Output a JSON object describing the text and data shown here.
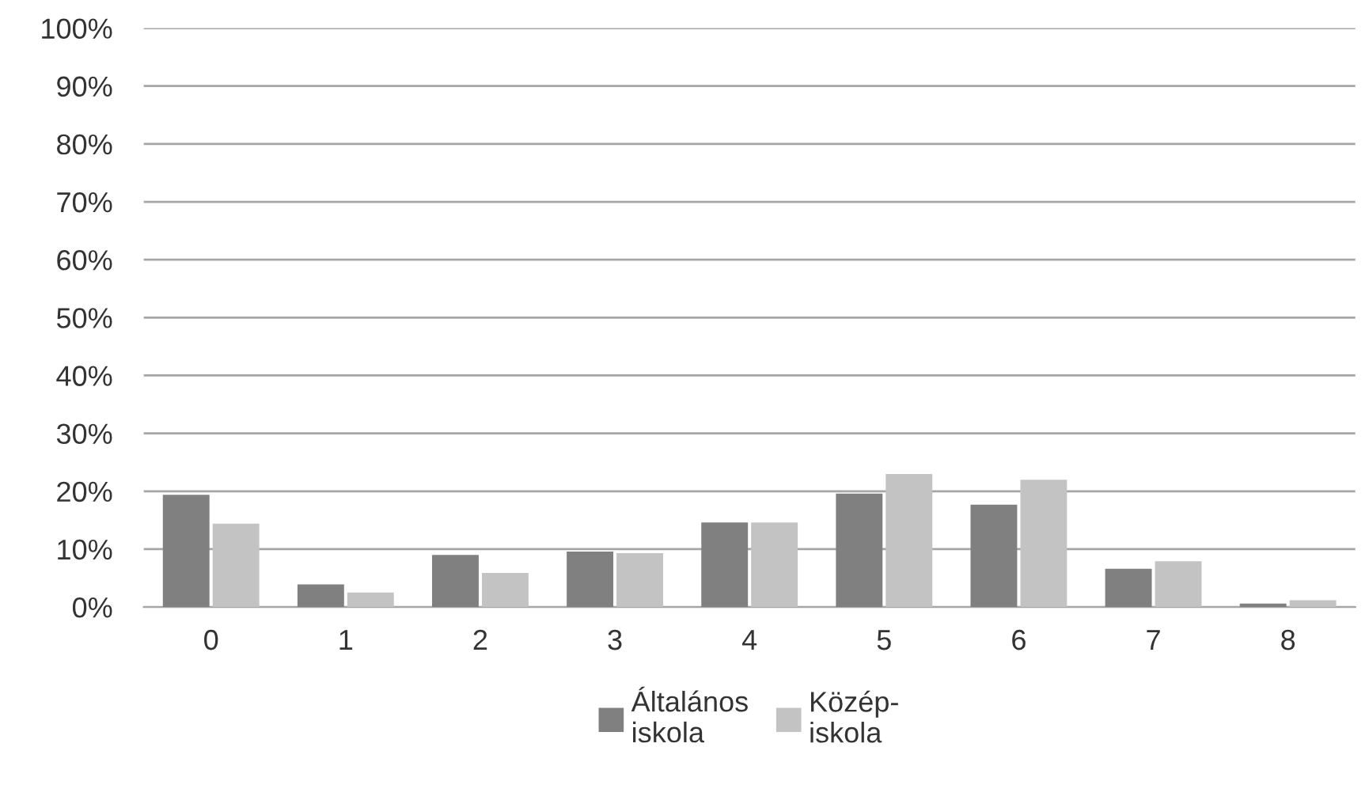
{
  "chart_data": {
    "type": "bar",
    "categories": [
      "0",
      "1",
      "2",
      "3",
      "4",
      "5",
      "6",
      "7",
      "8"
    ],
    "series": [
      {
        "name": "Általános\niskola",
        "color": "#808080",
        "values": [
          19.2,
          3.7,
          8.8,
          9.4,
          14.4,
          19.4,
          17.5,
          6.4,
          0.4
        ]
      },
      {
        "name": "Közép-\niskola",
        "color": "#c3c3c3",
        "values": [
          14.2,
          2.3,
          5.7,
          9.1,
          14.4,
          22.8,
          21.8,
          7.7,
          1.0
        ]
      }
    ],
    "ylim": [
      0,
      100
    ],
    "yticks": [
      {
        "value": 0,
        "label": "0%"
      },
      {
        "value": 10,
        "label": "10%"
      },
      {
        "value": 20,
        "label": "20%"
      },
      {
        "value": 30,
        "label": "30%"
      },
      {
        "value": 40,
        "label": "40%"
      },
      {
        "value": 50,
        "label": "50%"
      },
      {
        "value": 60,
        "label": "60%"
      },
      {
        "value": 70,
        "label": "70%"
      },
      {
        "value": 80,
        "label": "80%"
      },
      {
        "value": 90,
        "label": "90%"
      },
      {
        "value": 100,
        "label": "100%"
      }
    ],
    "grid": "y",
    "legend": "bottom"
  }
}
